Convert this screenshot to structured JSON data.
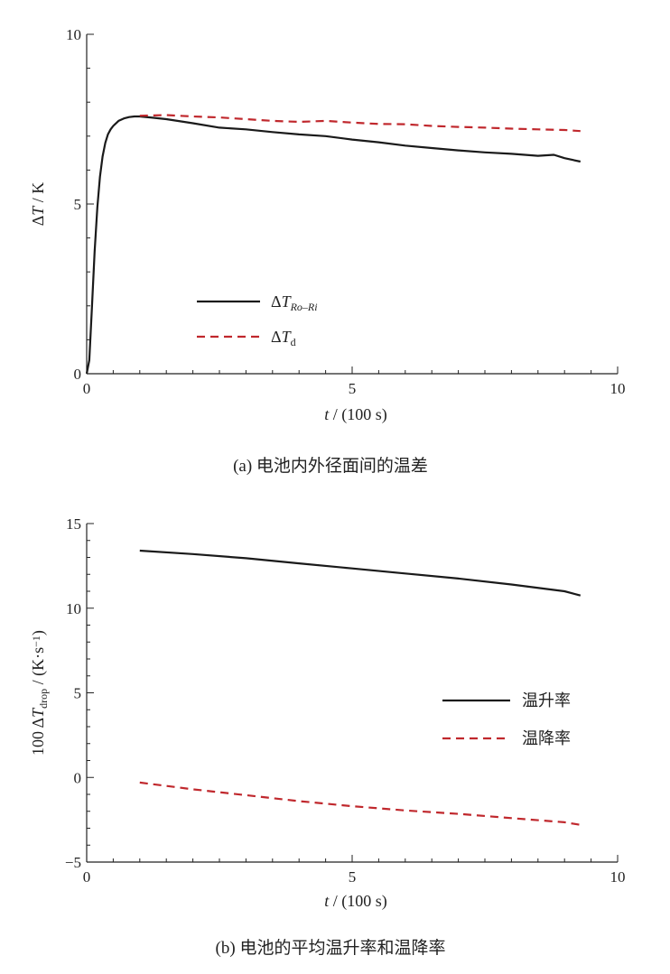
{
  "chart_data": [
    {
      "id": "a",
      "type": "line",
      "caption": "(a)  电池内外径面间的温差",
      "xlabel_var": "t",
      "xlabel_unit": " / (100 s)",
      "ylabel_var": "T",
      "ylabel_unit": " / K",
      "xlim": [
        0,
        10
      ],
      "ylim": [
        0,
        10
      ],
      "xticks": [
        "0",
        "5",
        "10"
      ],
      "yticks": [
        "0",
        "5",
        "10"
      ],
      "legend_position": "center-left",
      "series": [
        {
          "name": "ΔT_Ro–Ri",
          "legend_base": "T",
          "legend_sub": "Ro–Ri",
          "color": "#1a1a1a",
          "dash": "solid",
          "x": [
            0,
            0.05,
            0.1,
            0.15,
            0.2,
            0.25,
            0.3,
            0.35,
            0.4,
            0.45,
            0.5,
            0.6,
            0.7,
            0.8,
            0.9,
            1.0,
            1.2,
            1.5,
            2.0,
            2.5,
            3.0,
            3.5,
            4.0,
            4.5,
            5.0,
            5.5,
            6.0,
            6.5,
            7.0,
            7.5,
            8.0,
            8.5,
            8.8,
            9.0,
            9.3
          ],
          "y": [
            0,
            0.4,
            2.0,
            3.6,
            4.9,
            5.8,
            6.4,
            6.8,
            7.05,
            7.2,
            7.3,
            7.45,
            7.52,
            7.56,
            7.58,
            7.58,
            7.55,
            7.5,
            7.38,
            7.25,
            7.2,
            7.12,
            7.05,
            7.0,
            6.9,
            6.82,
            6.72,
            6.65,
            6.58,
            6.52,
            6.48,
            6.42,
            6.45,
            6.35,
            6.25
          ]
        },
        {
          "name": "ΔT_d",
          "legend_base": "T",
          "legend_sub": "d",
          "color": "#c0282d",
          "dash": "dashed",
          "x": [
            1.0,
            1.5,
            2.0,
            2.5,
            3.0,
            3.5,
            4.0,
            4.5,
            5.0,
            5.5,
            6.0,
            6.5,
            7.0,
            7.5,
            8.0,
            8.5,
            9.0,
            9.3
          ],
          "y": [
            7.6,
            7.62,
            7.58,
            7.55,
            7.5,
            7.45,
            7.42,
            7.45,
            7.4,
            7.36,
            7.35,
            7.3,
            7.27,
            7.25,
            7.22,
            7.2,
            7.18,
            7.15
          ]
        }
      ]
    },
    {
      "id": "b",
      "type": "line",
      "caption": "(b)  电池的平均温升率和温降率",
      "xlabel_var": "t",
      "xlabel_unit": " / (100 s)",
      "ylabel_prefix": "100 ",
      "ylabel_var": "T",
      "ylabel_sub": "drop",
      "ylabel_unit": " / (K·s",
      "ylabel_sup": "−1",
      "ylabel_close": ")",
      "xlim": [
        0,
        10
      ],
      "ylim": [
        -5,
        15
      ],
      "xticks": [
        "0",
        "5",
        "10"
      ],
      "yticks": [
        "−5",
        "0",
        "5",
        "10",
        "15"
      ],
      "legend_position": "center-right",
      "series": [
        {
          "name": "温升率",
          "color": "#1a1a1a",
          "dash": "solid",
          "x": [
            1.0,
            2.0,
            3.0,
            4.0,
            5.0,
            6.0,
            7.0,
            8.0,
            9.0,
            9.3
          ],
          "y": [
            13.4,
            13.2,
            12.95,
            12.65,
            12.35,
            12.05,
            11.75,
            11.4,
            11.0,
            10.75
          ]
        },
        {
          "name": "温降率",
          "color": "#c0282d",
          "dash": "dashed",
          "x": [
            1.0,
            2.0,
            3.0,
            4.0,
            5.0,
            6.0,
            7.0,
            8.0,
            9.0,
            9.3
          ],
          "y": [
            -0.3,
            -0.7,
            -1.05,
            -1.4,
            -1.7,
            -1.95,
            -2.15,
            -2.4,
            -2.65,
            -2.8
          ]
        }
      ]
    }
  ]
}
